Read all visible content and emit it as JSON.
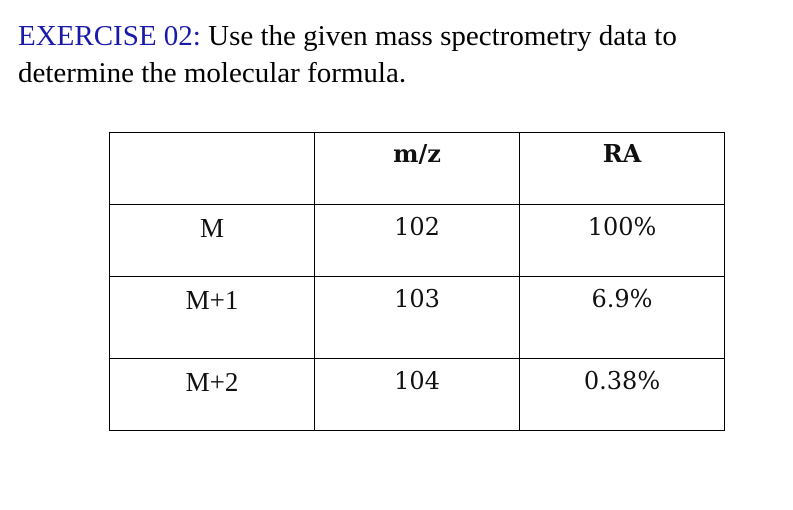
{
  "heading": {
    "label": "EXERCISE 02:",
    "text": " Use the given mass spectrometry data to determine the molecular formula."
  },
  "table": {
    "headers": [
      "",
      "m/z",
      "RA"
    ],
    "rows": [
      {
        "label": "M",
        "mz": "102",
        "ra": "100%"
      },
      {
        "label": "M+1",
        "mz": "103",
        "ra": "6.9%"
      },
      {
        "label": "M+2",
        "mz": "104",
        "ra": "0.38%"
      }
    ]
  },
  "colors": {
    "exercise_label": "#1a1aaa",
    "text": "#000000"
  }
}
